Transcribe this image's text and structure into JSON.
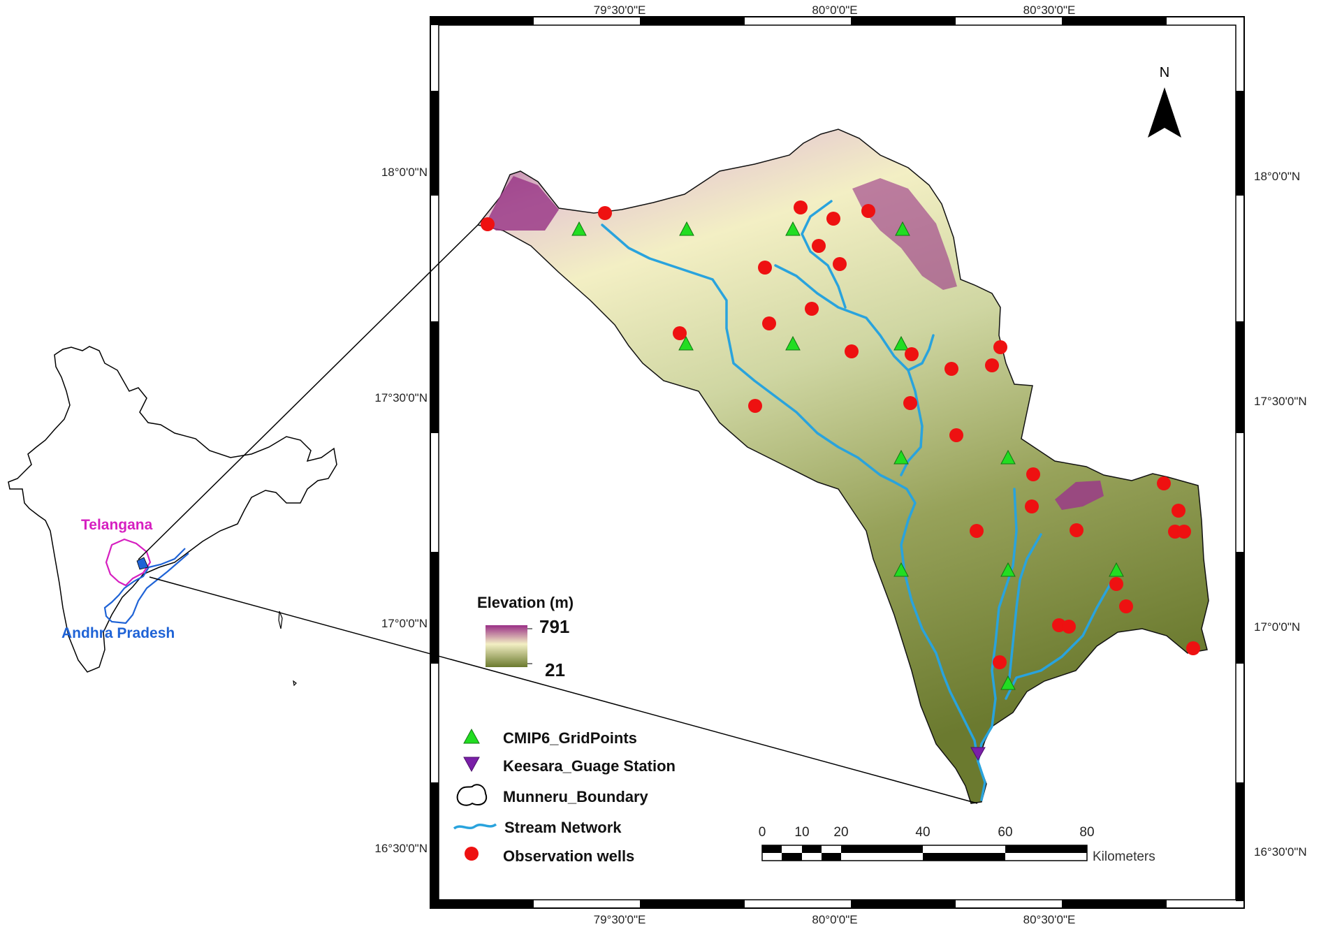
{
  "inset": {
    "state_labels": [
      "Telangana",
      "Andhra Pradesh"
    ],
    "colors": {
      "telangana": "#d61fc0",
      "andhra_pradesh": "#1f63d6",
      "outline": "#000000"
    }
  },
  "graticule": {
    "top_lon": [
      "79°30'0\"E",
      "80°0'0\"E",
      "80°30'0\"E"
    ],
    "bottom_lon": [
      "79°30'0\"E",
      "80°0'0\"E",
      "80°30'0\"E"
    ],
    "left_lat": [
      "18°0'0\"N",
      "17°30'0\"N",
      "17°0'0\"N",
      "16°30'0\"N"
    ],
    "right_lat": [
      "18°0'0\"N",
      "17°30'0\"N",
      "17°0'0\"N",
      "16°30'0\"N"
    ]
  },
  "north_arrow": {
    "label": "N"
  },
  "elevation_legend": {
    "title": "Elevation (m)",
    "max_label": "791",
    "min_label": "21",
    "colors": {
      "high": "#9a2f86",
      "mid": "#f3efc4",
      "low": "#6b7a2f"
    }
  },
  "legend": {
    "items": [
      {
        "label": "CMIP6_GridPoints",
        "symbol": "green-triangle-icon"
      },
      {
        "label": "Keesara_Guage Station",
        "symbol": "purple-down-triangle-icon"
      },
      {
        "label": "Munneru_Boundary",
        "symbol": "boundary-outline-icon"
      },
      {
        "label": "Stream Network",
        "symbol": "stream-line-icon"
      },
      {
        "label": "Observation wells",
        "symbol": "red-circle-icon"
      }
    ],
    "colors": {
      "grid": "#22dd22",
      "gauge": "#7a1fa8",
      "stream": "#29a3dd",
      "well": "#ee1111"
    }
  },
  "scale_bar": {
    "tick_labels": [
      "0",
      "10",
      "20",
      "40",
      "60",
      "80"
    ],
    "unit": "Kilometers"
  }
}
